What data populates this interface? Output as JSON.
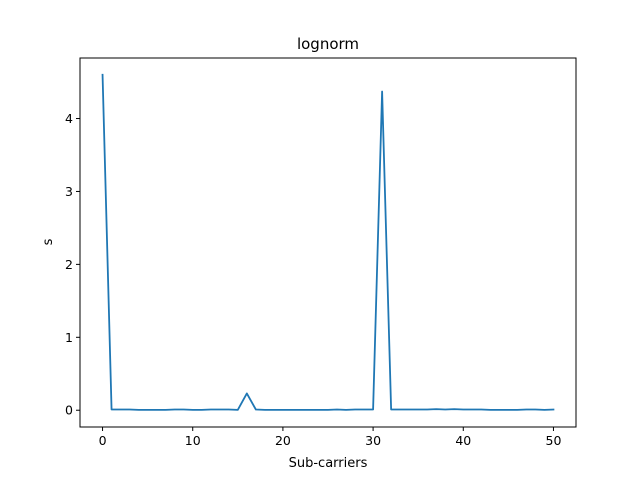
{
  "chart_data": {
    "type": "line",
    "title": "lognorm",
    "xlabel": "Sub-carriers",
    "ylabel": "s",
    "xlim": [
      -2.5,
      52.5
    ],
    "ylim": [
      -0.23,
      4.83
    ],
    "xticks": [
      0,
      10,
      20,
      30,
      40,
      50
    ],
    "yticks": [
      0,
      1,
      2,
      3,
      4
    ],
    "grid": false,
    "series": [
      {
        "color": "#1f77b4",
        "x": [
          0,
          1,
          2,
          3,
          4,
          5,
          6,
          7,
          8,
          9,
          10,
          11,
          12,
          13,
          14,
          15,
          16,
          17,
          18,
          19,
          20,
          21,
          22,
          23,
          24,
          25,
          26,
          27,
          28,
          29,
          30,
          31,
          32,
          33,
          34,
          35,
          36,
          37,
          38,
          39,
          40,
          41,
          42,
          43,
          44,
          45,
          46,
          47,
          48,
          49,
          50
        ],
        "values": [
          4.6,
          0.01,
          0.01,
          0.01,
          0.005,
          0.005,
          0.005,
          0.005,
          0.01,
          0.01,
          0.005,
          0.005,
          0.01,
          0.01,
          0.01,
          0.005,
          0.23,
          0.01,
          0.005,
          0.005,
          0.005,
          0.005,
          0.005,
          0.005,
          0.005,
          0.005,
          0.01,
          0.005,
          0.01,
          0.01,
          0.01,
          4.37,
          0.01,
          0.01,
          0.01,
          0.01,
          0.01,
          0.015,
          0.01,
          0.015,
          0.01,
          0.01,
          0.01,
          0.005,
          0.005,
          0.005,
          0.005,
          0.01,
          0.01,
          0.005,
          0.01
        ]
      }
    ]
  }
}
